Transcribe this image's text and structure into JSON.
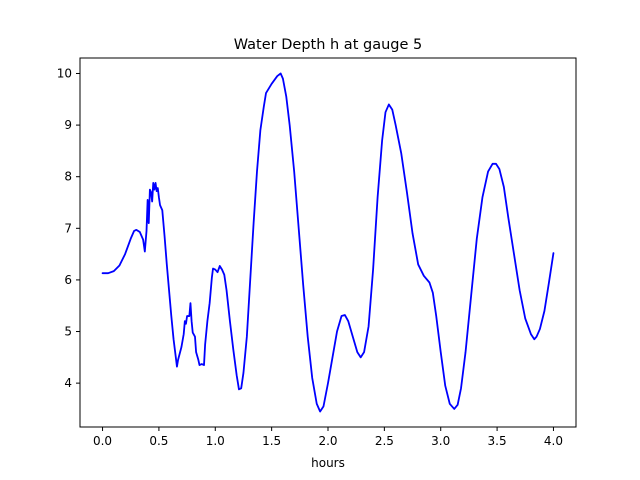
{
  "chart_data": {
    "type": "line",
    "title": "Water Depth h at gauge 5",
    "xlabel": "hours",
    "ylabel": "",
    "xlim": [
      -0.2,
      4.2
    ],
    "ylim": [
      3.15,
      10.3
    ],
    "x_ticks": [
      0.0,
      0.5,
      1.0,
      1.5,
      2.0,
      2.5,
      3.0,
      3.5,
      4.0
    ],
    "x_tick_labels": [
      "0.0",
      "0.5",
      "1.0",
      "1.5",
      "2.0",
      "2.5",
      "3.0",
      "3.5",
      "4.0"
    ],
    "y_ticks": [
      4,
      5,
      6,
      7,
      8,
      9,
      10
    ],
    "y_tick_labels": [
      "4",
      "5",
      "6",
      "7",
      "8",
      "9",
      "10"
    ],
    "grid": false,
    "legend": "none",
    "series": [
      {
        "color": "#0000ff",
        "points": [
          [
            0.0,
            6.13
          ],
          [
            0.05,
            6.13
          ],
          [
            0.1,
            6.17
          ],
          [
            0.15,
            6.28
          ],
          [
            0.2,
            6.5
          ],
          [
            0.25,
            6.8
          ],
          [
            0.28,
            6.95
          ],
          [
            0.3,
            6.97
          ],
          [
            0.33,
            6.93
          ],
          [
            0.36,
            6.78
          ],
          [
            0.375,
            6.55
          ],
          [
            0.39,
            6.95
          ],
          [
            0.4,
            7.55
          ],
          [
            0.405,
            7.2
          ],
          [
            0.41,
            7.1
          ],
          [
            0.42,
            7.75
          ],
          [
            0.43,
            7.7
          ],
          [
            0.44,
            7.52
          ],
          [
            0.45,
            7.88
          ],
          [
            0.46,
            7.75
          ],
          [
            0.47,
            7.88
          ],
          [
            0.48,
            7.72
          ],
          [
            0.49,
            7.78
          ],
          [
            0.5,
            7.6
          ],
          [
            0.51,
            7.45
          ],
          [
            0.53,
            7.35
          ],
          [
            0.55,
            6.85
          ],
          [
            0.57,
            6.3
          ],
          [
            0.59,
            5.8
          ],
          [
            0.61,
            5.3
          ],
          [
            0.63,
            4.85
          ],
          [
            0.65,
            4.5
          ],
          [
            0.66,
            4.32
          ],
          [
            0.67,
            4.45
          ],
          [
            0.7,
            4.7
          ],
          [
            0.72,
            4.95
          ],
          [
            0.73,
            5.2
          ],
          [
            0.74,
            5.15
          ],
          [
            0.75,
            5.3
          ],
          [
            0.77,
            5.3
          ],
          [
            0.78,
            5.55
          ],
          [
            0.79,
            5.2
          ],
          [
            0.8,
            4.98
          ],
          [
            0.82,
            4.9
          ],
          [
            0.83,
            4.6
          ],
          [
            0.85,
            4.45
          ],
          [
            0.86,
            4.35
          ],
          [
            0.88,
            4.37
          ],
          [
            0.9,
            4.35
          ],
          [
            0.91,
            4.75
          ],
          [
            0.93,
            5.2
          ],
          [
            0.95,
            5.55
          ],
          [
            0.97,
            6.05
          ],
          [
            0.98,
            6.22
          ],
          [
            1.0,
            6.2
          ],
          [
            1.02,
            6.15
          ],
          [
            1.04,
            6.27
          ],
          [
            1.06,
            6.2
          ],
          [
            1.08,
            6.1
          ],
          [
            1.1,
            5.8
          ],
          [
            1.13,
            5.2
          ],
          [
            1.16,
            4.65
          ],
          [
            1.19,
            4.15
          ],
          [
            1.21,
            3.88
          ],
          [
            1.23,
            3.9
          ],
          [
            1.25,
            4.2
          ],
          [
            1.28,
            4.9
          ],
          [
            1.31,
            6.0
          ],
          [
            1.34,
            7.1
          ],
          [
            1.37,
            8.1
          ],
          [
            1.4,
            8.9
          ],
          [
            1.43,
            9.35
          ],
          [
            1.45,
            9.62
          ],
          [
            1.5,
            9.8
          ],
          [
            1.55,
            9.95
          ],
          [
            1.58,
            10.0
          ],
          [
            1.6,
            9.9
          ],
          [
            1.63,
            9.55
          ],
          [
            1.66,
            9.0
          ],
          [
            1.7,
            8.1
          ],
          [
            1.74,
            7.0
          ],
          [
            1.78,
            5.9
          ],
          [
            1.82,
            4.9
          ],
          [
            1.86,
            4.1
          ],
          [
            1.9,
            3.6
          ],
          [
            1.93,
            3.45
          ],
          [
            1.96,
            3.55
          ],
          [
            2.0,
            4.0
          ],
          [
            2.04,
            4.5
          ],
          [
            2.08,
            5.0
          ],
          [
            2.12,
            5.3
          ],
          [
            2.15,
            5.32
          ],
          [
            2.18,
            5.2
          ],
          [
            2.22,
            4.9
          ],
          [
            2.26,
            4.6
          ],
          [
            2.29,
            4.5
          ],
          [
            2.32,
            4.6
          ],
          [
            2.36,
            5.1
          ],
          [
            2.4,
            6.2
          ],
          [
            2.44,
            7.6
          ],
          [
            2.48,
            8.7
          ],
          [
            2.51,
            9.25
          ],
          [
            2.54,
            9.4
          ],
          [
            2.57,
            9.3
          ],
          [
            2.6,
            9.0
          ],
          [
            2.65,
            8.45
          ],
          [
            2.7,
            7.7
          ],
          [
            2.75,
            6.9
          ],
          [
            2.8,
            6.3
          ],
          [
            2.85,
            6.08
          ],
          [
            2.9,
            5.95
          ],
          [
            2.93,
            5.75
          ],
          [
            2.96,
            5.3
          ],
          [
            3.0,
            4.6
          ],
          [
            3.04,
            3.95
          ],
          [
            3.08,
            3.6
          ],
          [
            3.12,
            3.5
          ],
          [
            3.15,
            3.58
          ],
          [
            3.18,
            3.9
          ],
          [
            3.22,
            4.6
          ],
          [
            3.27,
            5.7
          ],
          [
            3.32,
            6.8
          ],
          [
            3.37,
            7.6
          ],
          [
            3.42,
            8.1
          ],
          [
            3.46,
            8.25
          ],
          [
            3.49,
            8.25
          ],
          [
            3.52,
            8.15
          ],
          [
            3.56,
            7.8
          ],
          [
            3.6,
            7.2
          ],
          [
            3.65,
            6.5
          ],
          [
            3.7,
            5.8
          ],
          [
            3.75,
            5.25
          ],
          [
            3.8,
            4.95
          ],
          [
            3.83,
            4.85
          ],
          [
            3.85,
            4.9
          ],
          [
            3.88,
            5.05
          ],
          [
            3.92,
            5.4
          ],
          [
            3.96,
            5.95
          ],
          [
            4.0,
            6.52
          ]
        ]
      }
    ]
  }
}
